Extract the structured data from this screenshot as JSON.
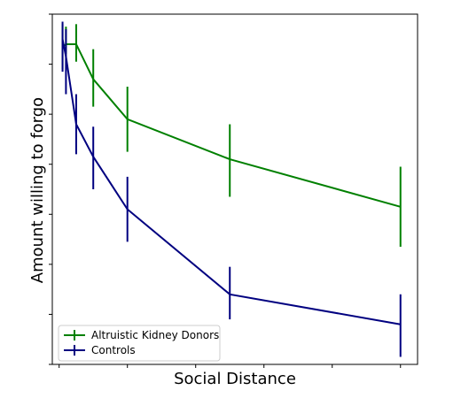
{
  "chart_data": {
    "type": "line",
    "title": "",
    "xlabel": "Social Distance",
    "ylabel": "Amount willing to forgo",
    "x": [
      1,
      2,
      5,
      10,
      20,
      50,
      100
    ],
    "xlim": [
      -2,
      105
    ],
    "ylim": [
      0,
      70
    ],
    "series": [
      {
        "name": "Altruistic Kidney Donors",
        "color": "#008000",
        "values": [
          63.5,
          64.0,
          64.0,
          57.0,
          49.0,
          41.0,
          31.5
        ],
        "err_low": [
          4.5,
          2.0,
          3.5,
          5.5,
          6.5,
          7.5,
          8.0
        ],
        "err_high": [
          4.5,
          3.5,
          4.0,
          6.0,
          6.5,
          7.0,
          8.0
        ]
      },
      {
        "name": "Controls",
        "color": "#000080",
        "values": [
          65.0,
          61.5,
          48.0,
          41.5,
          31.0,
          14.0,
          8.0
        ],
        "err_low": [
          6.5,
          7.5,
          6.0,
          6.5,
          6.5,
          5.0,
          6.5
        ],
        "err_high": [
          3.5,
          5.5,
          6.0,
          6.0,
          6.5,
          5.5,
          6.0
        ]
      }
    ],
    "xticks": [
      0,
      20,
      40,
      60,
      80,
      100
    ],
    "yticks": [
      0,
      10,
      20,
      30,
      40,
      50,
      60,
      70
    ],
    "tick_labels_visible": false,
    "grid": false,
    "legend_position": "lower-left"
  }
}
